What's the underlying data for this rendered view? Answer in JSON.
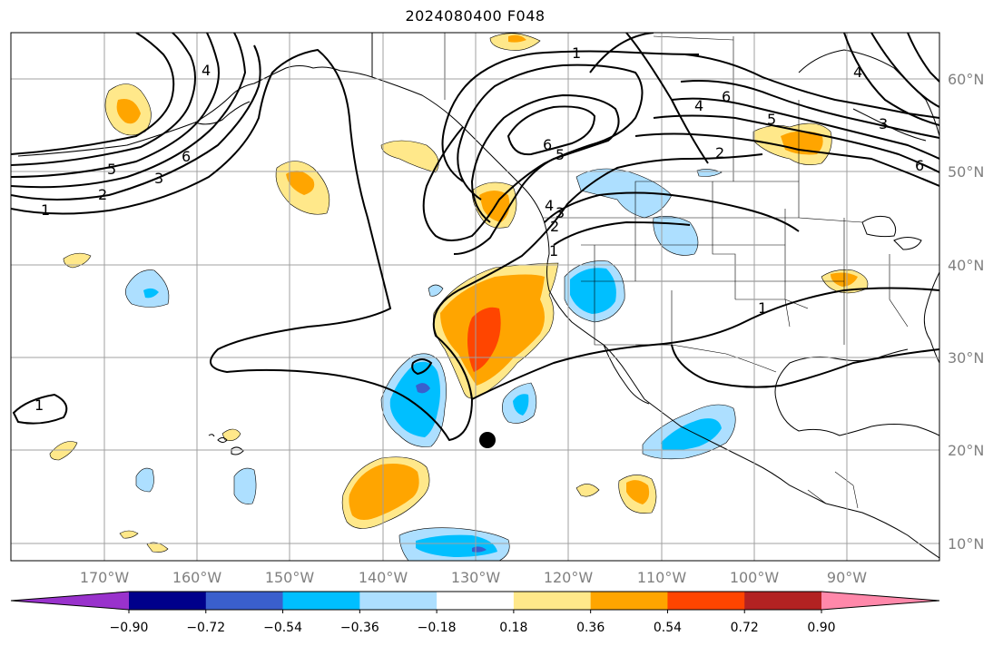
{
  "title": "2024080400 F048",
  "lat_labels": [
    "60°N",
    "50°N",
    "40°N",
    "30°N",
    "20°N",
    "10°N"
  ],
  "lon_labels": [
    "170°W",
    "160°W",
    "150°W",
    "140°W",
    "130°W",
    "120°W",
    "110°W",
    "100°W",
    "90°W"
  ],
  "colorbar": {
    "tick_labels": [
      "−0.90",
      "−0.72",
      "−0.54",
      "−0.36",
      "−0.18",
      "0.18",
      "0.36",
      "0.54",
      "0.72",
      "0.90"
    ],
    "colors": [
      "#9932CC",
      "#00008B",
      "#3A5FCD",
      "#00BFFF",
      "#ADDFFF",
      "#FFFFFF",
      "#FFE88A",
      "#FFA500",
      "#FF4500",
      "#B22222",
      "#FF88AA"
    ]
  },
  "contour_labels": [
    "1",
    "2",
    "3",
    "4",
    "5",
    "6",
    "1",
    "2",
    "4",
    "5",
    "6",
    "6",
    "5",
    "4",
    "3",
    "2",
    "1",
    "1",
    "1",
    "4",
    "3",
    "6"
  ],
  "colors": {
    "land_line": "#000000",
    "grid": "#a0a0a0",
    "positive_light": "#FFE88A",
    "positive_mid": "#FFA500",
    "positive_strong": "#FF4500",
    "negative_light": "#ADDFFF",
    "negative_mid": "#00BFFF",
    "negative_strong": "#3A5FCD"
  }
}
